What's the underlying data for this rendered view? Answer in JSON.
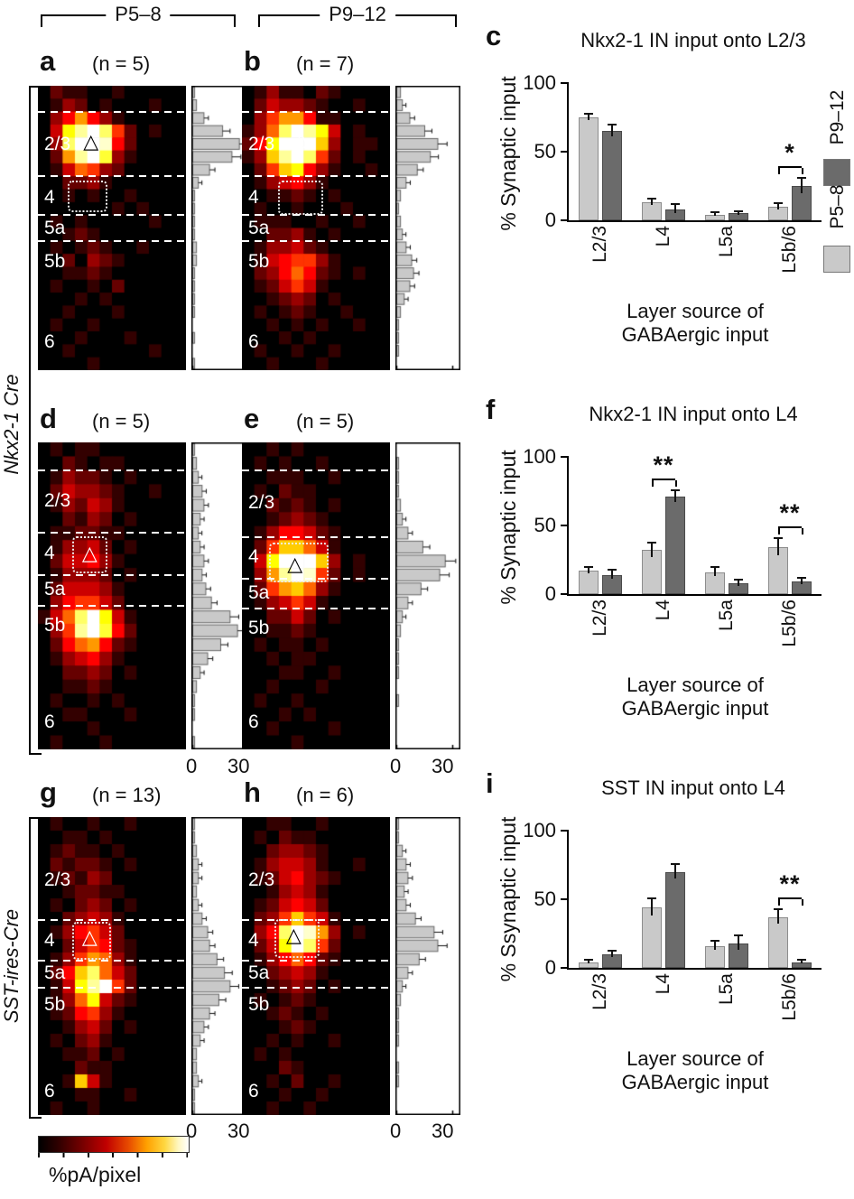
{
  "figure": {
    "age_group_brackets": [
      {
        "label": "P5–8"
      },
      {
        "label": "P9–12"
      }
    ],
    "cre_line_labels": [
      {
        "label": "Nkx2-1 Cre"
      },
      {
        "label": "SST-ires-Cre"
      }
    ],
    "colorbar_label": "%pA/pixel",
    "hist_axis_min": "0",
    "hist_axis_max": "30"
  },
  "chart_data": [
    {
      "type": "heatmap",
      "id": "a",
      "letter": "a",
      "n_label": "(n = 5)",
      "age_group": "P5–8",
      "cre_line": "Nkx2-1 Cre",
      "value_unit": "%pA/pixel",
      "rows": 22,
      "cols": 12,
      "grid": [
        "021100100000",
        "013201000100",
        "035853100000",
        "04adfc620100",
        "03cffe520000",
        "028dfb310000",
        "014763200000",
        "002231000000",
        "001010010000",
        "000000101000",
        "010100000100",
        "001210000000",
        "010121001000",
        "002032100000",
        "001121000000",
        "010010200000",
        "000101000000",
        "001000100000",
        "010010000000",
        "000100010000",
        "001000000100",
        "000010000000"
      ],
      "profile": [
        1,
        2,
        6,
        16,
        25,
        21,
        9,
        3,
        1,
        1,
        1,
        1,
        2,
        2,
        1,
        1,
        1,
        1,
        0,
        1,
        0,
        1
      ],
      "profile_max": 30,
      "layer_lines": [
        2,
        7,
        10,
        12
      ],
      "layer_labels": [
        {
          "text": "2/3",
          "row": 4.6
        },
        {
          "text": "4",
          "row": 8.7
        },
        {
          "text": "5a",
          "row": 11.1
        },
        {
          "text": "5b",
          "row": 13.7
        },
        {
          "text": "6",
          "row": 19.9
        }
      ],
      "roi_box": {
        "c0": 2.4,
        "c1": 5.6,
        "r0": 7.3,
        "r1": 9.8
      },
      "marker": {
        "col": 4.3,
        "row": 4.4,
        "color": "#000000"
      }
    },
    {
      "type": "heatmap",
      "id": "b",
      "letter": "b",
      "n_label": "(n = 7)",
      "age_group": "P9–12",
      "cre_line": "Nkx2-1 Cre",
      "value_unit": "%pA/pixel",
      "rows": 22,
      "cols": 12,
      "grid": [
        "013110210000",
        "024332100100",
        "036885110000",
        "137cfda40100",
        "25afff930110",
        "139dfc620100",
        "0269a5310010",
        "013453100000",
        "001121010000",
        "010010001000",
        "011100100100",
        "002231010000",
        "013342100000",
        "014566310000",
        "023575210100",
        "012464100000",
        "001232010000",
        "010121001000",
        "001010100100",
        "000101000000",
        "010010010000",
        "001000100000"
      ],
      "profile": [
        2,
        3,
        7,
        15,
        22,
        18,
        11,
        5,
        2,
        1,
        2,
        3,
        5,
        8,
        9,
        7,
        4,
        2,
        1,
        1,
        1,
        0
      ],
      "profile_max": 30,
      "layer_lines": [
        2,
        7,
        10,
        12
      ],
      "layer_labels": [
        {
          "text": "2/3",
          "row": 4.6
        },
        {
          "text": "4",
          "row": 8.7
        },
        {
          "text": "5a",
          "row": 11.1
        },
        {
          "text": "5b",
          "row": 13.7
        },
        {
          "text": "6",
          "row": 19.9
        }
      ],
      "roi_box": {
        "c0": 2.9,
        "c1": 6.6,
        "r0": 7.3,
        "r1": 10.0
      },
      "marker": {
        "col": 4.8,
        "row": 4.2,
        "color": "#ffffff"
      }
    },
    {
      "type": "heatmap",
      "id": "d",
      "letter": "d",
      "n_label": "(n = 5)",
      "age_group": "P5–8",
      "cre_line": "Nkx2-1 Cre",
      "value_unit": "%pA/pixel",
      "rows": 22,
      "cols": 12,
      "grid": [
        "010110000000",
        "002101100000",
        "013221010000",
        "024332100100",
        "013243100000",
        "002132010000",
        "011221100000",
        "013342010000",
        "024453100000",
        "013332010000",
        "024443100000",
        "035664200000",
        "147cfa410000",
        "036dfb520000",
        "025785210000",
        "013453100000",
        "002232010000",
        "001121000000",
        "010010100000",
        "001100010000",
        "000010000000",
        "010001000000"
      ],
      "profile": [
        1,
        2,
        3,
        5,
        6,
        4,
        3,
        4,
        6,
        5,
        7,
        10,
        20,
        24,
        15,
        8,
        4,
        2,
        1,
        1,
        0,
        1
      ],
      "profile_max": 30,
      "layer_lines": [
        2,
        6.5,
        9.5,
        11.7
      ],
      "layer_labels": [
        {
          "text": "2/3",
          "row": 4.3
        },
        {
          "text": "4",
          "row": 8.0
        },
        {
          "text": "5a",
          "row": 10.6
        },
        {
          "text": "5b",
          "row": 13.2
        },
        {
          "text": "6",
          "row": 20.1
        }
      ],
      "roi_box": {
        "c0": 2.8,
        "c1": 5.6,
        "r0": 6.7,
        "r1": 9.4
      },
      "marker": {
        "col": 4.2,
        "row": 8.0,
        "color": "#ffffff"
      }
    },
    {
      "type": "heatmap",
      "id": "e",
      "letter": "e",
      "n_label": "(n = 5)",
      "age_group": "P9–12",
      "cre_line": "Nkx2-1 Cre",
      "value_unit": "%pA/pixel",
      "rows": 22,
      "cols": 12,
      "grid": [
        "001010000000",
        "010100100000",
        "001110010000",
        "010211000000",
        "002121010000",
        "001232100000",
        "013554210000",
        "026997410000",
        "04afff930100",
        "038dfe620100",
        "026897310000",
        "013464100000",
        "002242010000",
        "001121000000",
        "010110100000",
        "001011000000",
        "000110010000",
        "001000100000",
        "010010000000",
        "000101000000",
        "001000010000",
        "000010000000"
      ],
      "profile": [
        0,
        1,
        1,
        1,
        2,
        3,
        6,
        14,
        26,
        23,
        13,
        6,
        3,
        2,
        1,
        1,
        1,
        0,
        1,
        0,
        0,
        0
      ],
      "profile_max": 30,
      "layer_lines": [
        2,
        6.8,
        9.8,
        11.9
      ],
      "layer_labels": [
        {
          "text": "2/3",
          "row": 4.4
        },
        {
          "text": "4",
          "row": 8.3
        },
        {
          "text": "5a",
          "row": 10.9
        },
        {
          "text": "5b",
          "row": 13.4
        },
        {
          "text": "6",
          "row": 20.1
        }
      ],
      "roi_box": {
        "c0": 2.2,
        "c1": 7.0,
        "r0": 7.2,
        "r1": 10.0
      },
      "marker": {
        "col": 4.3,
        "row": 8.8,
        "color": "#000000"
      }
    },
    {
      "type": "heatmap",
      "id": "g",
      "letter": "g",
      "n_label": "(n = 13)",
      "age_group": "P5–8",
      "cre_line": "SST-ires-Cre",
      "value_unit": "%pA/pixel",
      "rows": 22,
      "cols": 12,
      "grid": [
        "010010010000",
        "001101000000",
        "012110100000",
        "021221010000",
        "012132000000",
        "001221100000",
        "010232010000",
        "002343100000",
        "013564200000",
        "002465210000",
        "013687310000",
        "0259c7420000",
        "014adf620000",
        "0137a4210000",
        "012563100000",
        "001342010000",
        "010231000000",
        "001120100000",
        "000211000000",
        "001941000000",
        "000110010000",
        "010010000000"
      ],
      "profile": [
        1,
        1,
        2,
        3,
        3,
        2,
        3,
        5,
        8,
        9,
        13,
        17,
        20,
        14,
        9,
        6,
        4,
        2,
        2,
        3,
        1,
        1
      ],
      "profile_max": 30,
      "layer_lines": [
        7.6,
        10.6,
        12.6
      ],
      "layer_labels": [
        {
          "text": "2/3",
          "row": 4.7
        },
        {
          "text": "4",
          "row": 9.2
        },
        {
          "text": "5a",
          "row": 11.6
        },
        {
          "text": "5b",
          "row": 13.9
        },
        {
          "text": "6",
          "row": 20.3
        }
      ],
      "roi_box": {
        "c0": 2.8,
        "c1": 5.9,
        "r0": 7.7,
        "r1": 10.5
      },
      "marker": {
        "col": 4.2,
        "row": 8.9,
        "color": "#ffffff"
      }
    },
    {
      "type": "heatmap",
      "id": "h",
      "letter": "h",
      "n_label": "(n = 6)",
      "age_group": "P9–12",
      "cre_line": "SST-ires-Cre",
      "value_unit": "%pA/pixel",
      "rows": 22,
      "cols": 12,
      "grid": [
        "001100100000",
        "010211000000",
        "002332100000",
        "013443100100",
        "012453210000",
        "001343100000",
        "012454200000",
        "023696410000",
        "035cfe830100",
        "024afc620000",
        "013575210000",
        "002343100000",
        "001232010000",
        "010121000000",
        "001210100000",
        "000121000000",
        "001010010000",
        "010100000000",
        "000210000000",
        "001020010000",
        "000100100000",
        "001001000000"
      ],
      "profile": [
        1,
        1,
        3,
        5,
        6,
        4,
        5,
        10,
        20,
        22,
        12,
        6,
        3,
        2,
        1,
        1,
        1,
        0,
        1,
        1,
        0,
        0
      ],
      "profile_max": 30,
      "layer_lines": [
        7.6,
        10.6,
        12.6
      ],
      "layer_labels": [
        {
          "text": "2/3",
          "row": 4.7
        },
        {
          "text": "4",
          "row": 9.2
        },
        {
          "text": "5a",
          "row": 11.6
        },
        {
          "text": "5b",
          "row": 13.9
        },
        {
          "text": "6",
          "row": 20.3
        }
      ],
      "roi_box": {
        "c0": 2.6,
        "c1": 6.3,
        "r0": 7.5,
        "r1": 10.4
      },
      "marker": {
        "col": 4.2,
        "row": 8.8,
        "color": "#000000"
      }
    },
    {
      "type": "bar",
      "id": "c",
      "letter": "c",
      "title": "Nkx2-1 IN input onto L2/3",
      "ylabel": "% Synaptic input",
      "xlabel": "Layer source of GABAergic input",
      "categories": [
        "L2/3",
        "L4",
        "L5a",
        "L5b/6"
      ],
      "ylim": [
        0,
        100
      ],
      "yticks": [
        0,
        50,
        100
      ],
      "series": [
        {
          "name": "P5–8",
          "color": "#c9c9c9",
          "values": [
            75,
            13,
            4,
            10
          ],
          "errors": [
            2,
            2,
            1,
            2
          ]
        },
        {
          "name": "P9–12",
          "color": "#6b6b6b",
          "values": [
            65,
            8,
            5,
            25
          ],
          "errors": [
            4,
            3,
            1,
            5
          ]
        }
      ],
      "sig": [
        {
          "category": "L5b/6",
          "symbol": "*"
        }
      ],
      "legend": [
        {
          "label": "P9–12",
          "color": "#6b6b6b"
        },
        {
          "label": "P5–8",
          "color": "#c9c9c9"
        }
      ]
    },
    {
      "type": "bar",
      "id": "f",
      "letter": "f",
      "title": "Nkx2-1 IN input onto L4",
      "ylabel": "% Synaptic input",
      "xlabel": "Layer source of GABAergic input",
      "categories": [
        "L2/3",
        "L4",
        "L5a",
        "L5b/6"
      ],
      "ylim": [
        0,
        100
      ],
      "yticks": [
        0,
        50,
        100
      ],
      "series": [
        {
          "name": "P5–8",
          "color": "#c9c9c9",
          "values": [
            17,
            32,
            16,
            34
          ],
          "errors": [
            2,
            5,
            3,
            6
          ]
        },
        {
          "name": "P9–12",
          "color": "#6b6b6b",
          "values": [
            14,
            71,
            8,
            9
          ],
          "errors": [
            3,
            4,
            2,
            2
          ]
        }
      ],
      "sig": [
        {
          "category": "L4",
          "symbol": "**"
        },
        {
          "category": "L5b/6",
          "symbol": "**"
        }
      ]
    },
    {
      "type": "bar",
      "id": "i",
      "letter": "i",
      "title": "SST IN input onto L4",
      "ylabel": "% Ssynaptic input",
      "xlabel": "Layer source of GABAergic input",
      "categories": [
        "L2/3",
        "L4",
        "L5a",
        "L5b/6"
      ],
      "ylim": [
        0,
        100
      ],
      "yticks": [
        0,
        50,
        100
      ],
      "series": [
        {
          "name": "P5–8",
          "color": "#c9c9c9",
          "values": [
            4,
            44,
            16,
            37
          ],
          "errors": [
            1,
            6,
            3,
            5
          ]
        },
        {
          "name": "P9–12",
          "color": "#6b6b6b",
          "values": [
            10,
            70,
            18,
            4
          ],
          "errors": [
            2,
            5,
            5,
            1
          ]
        }
      ],
      "sig": [
        {
          "category": "L5b/6",
          "symbol": "**"
        }
      ]
    }
  ]
}
